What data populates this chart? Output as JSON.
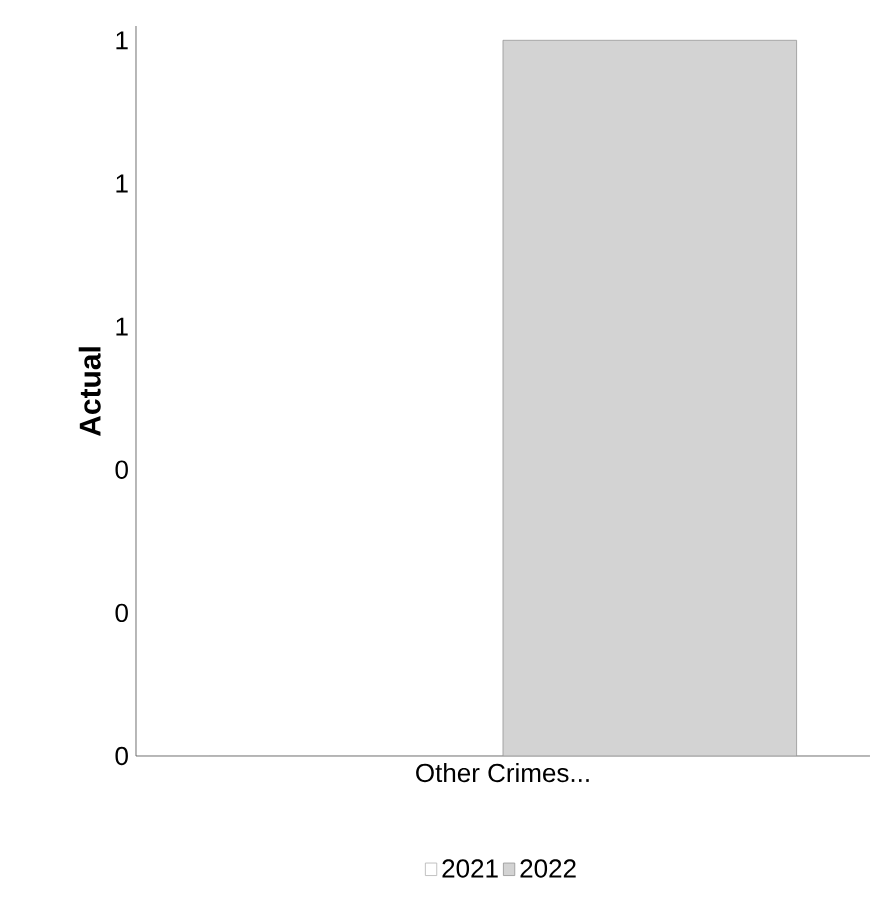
{
  "chart_data": {
    "type": "bar",
    "ylabel": "**Actual**",
    "categories": [
      "Other Crimes..."
    ],
    "series": [
      {
        "name": "2021",
        "color": "#ffffff",
        "values": [
          0
        ]
      },
      {
        "name": "2022",
        "color": "#d3d3d3",
        "values": [
          1
        ]
      }
    ],
    "ylim": [
      0,
      1.02
    ],
    "yticks": [
      {
        "value": 0,
        "label": "0"
      },
      {
        "value": 0.2,
        "label": "0"
      },
      {
        "value": 0.4,
        "label": "0"
      },
      {
        "value": 0.6,
        "label": "1"
      },
      {
        "value": 0.8,
        "label": "1"
      },
      {
        "value": 1,
        "label": "1"
      }
    ],
    "legend": "bottom",
    "grid": false
  }
}
